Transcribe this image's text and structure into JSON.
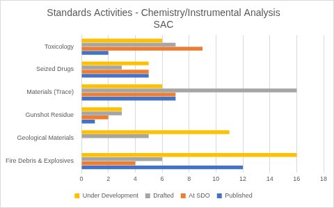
{
  "chart_data": {
    "type": "bar",
    "orientation": "horizontal",
    "title": "Standards Activities - Chemistry/Instrumental Analysis",
    "subtitle": "SAC",
    "categories": [
      "Toxicology",
      "Seized Drugs",
      "Materials (Trace)",
      "Gunshot Residue",
      "Geological Materials",
      "Fire Debris & Explosives"
    ],
    "series": [
      {
        "name": "Under Development",
        "color": "#ffc000",
        "values": [
          6,
          5,
          6,
          3,
          11,
          16
        ]
      },
      {
        "name": "Drafted",
        "color": "#a5a5a5",
        "values": [
          7,
          3,
          16,
          3,
          5,
          6
        ]
      },
      {
        "name": "At SDO",
        "color": "#ed7d31",
        "values": [
          9,
          5,
          7,
          2,
          0,
          4
        ]
      },
      {
        "name": "Published",
        "color": "#4472c4",
        "values": [
          2,
          5,
          7,
          1,
          0,
          12
        ]
      }
    ],
    "xlim": [
      0,
      18
    ],
    "xticks": [
      0,
      2,
      4,
      6,
      8,
      10,
      12,
      14,
      16,
      18
    ],
    "grid": true,
    "legend": "bottom"
  }
}
